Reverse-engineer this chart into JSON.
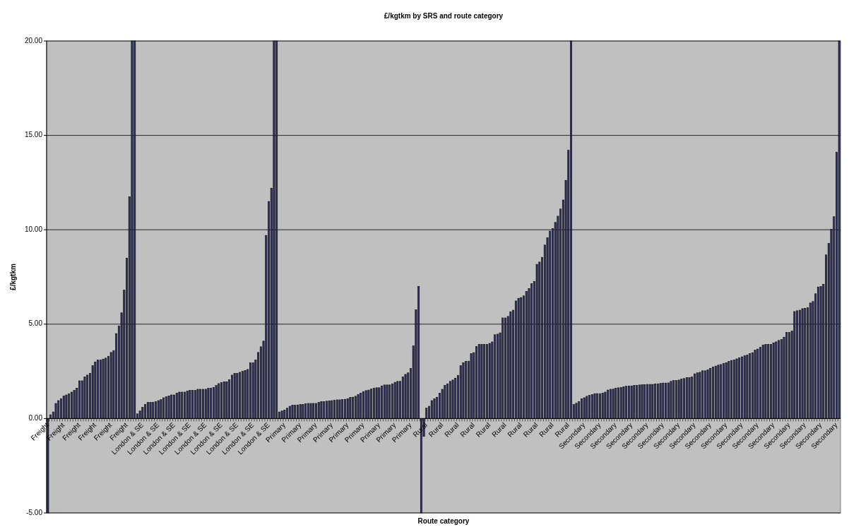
{
  "chart_data": {
    "type": "bar",
    "title": "£/kgtkm by SRS and route category",
    "xlabel": "Route category",
    "ylabel": "£/kgtkm",
    "categories": [
      "Freight",
      null,
      null,
      null,
      null,
      null,
      "Freight",
      null,
      null,
      null,
      null,
      null,
      "Freight",
      null,
      null,
      null,
      null,
      null,
      "Freight",
      null,
      null,
      null,
      null,
      null,
      "Freight",
      null,
      null,
      null,
      null,
      null,
      "Freight",
      null,
      null,
      null,
      null,
      null,
      "London & SE",
      null,
      null,
      null,
      null,
      null,
      "London & SE",
      null,
      null,
      null,
      null,
      null,
      "London & SE",
      null,
      null,
      null,
      null,
      null,
      "London & SE",
      null,
      null,
      null,
      null,
      null,
      "London & SE",
      null,
      null,
      null,
      null,
      null,
      "London & SE",
      null,
      null,
      null,
      null,
      null,
      "London & SE",
      null,
      null,
      null,
      null,
      null,
      "London & SE",
      null,
      null,
      null,
      null,
      null,
      "London & SE",
      null,
      null,
      null,
      null,
      null,
      "Primary",
      null,
      null,
      null,
      null,
      null,
      "Primary",
      null,
      null,
      null,
      null,
      null,
      "Primary",
      null,
      null,
      null,
      null,
      null,
      "Primary",
      null,
      null,
      null,
      null,
      null,
      "Primary",
      null,
      null,
      null,
      null,
      null,
      "Primary",
      null,
      null,
      null,
      null,
      null,
      "Primary",
      null,
      null,
      null,
      null,
      null,
      "Primary",
      null,
      null,
      null,
      null,
      null,
      "Primary",
      null,
      null,
      null,
      null,
      null,
      "Rural",
      null,
      null,
      null,
      null,
      null,
      "Rural",
      null,
      null,
      null,
      null,
      null,
      "Rural",
      null,
      null,
      null,
      null,
      null,
      "Rural",
      null,
      null,
      null,
      null,
      null,
      "Rural",
      null,
      null,
      null,
      null,
      null,
      "Rural",
      null,
      null,
      null,
      null,
      null,
      "Rural",
      null,
      null,
      null,
      null,
      null,
      "Rural",
      null,
      null,
      null,
      null,
      null,
      "Rural",
      null,
      null,
      null,
      null,
      null,
      "Rural",
      null,
      null,
      null,
      null,
      null,
      "Secondary",
      null,
      null,
      null,
      null,
      null,
      "Secondary",
      null,
      null,
      null,
      null,
      null,
      "Secondary",
      null,
      null,
      null,
      null,
      null,
      "Secondary",
      null,
      null,
      null,
      null,
      null,
      "Secondary",
      null,
      null,
      null,
      null,
      null,
      "Secondary",
      null,
      null,
      null,
      null,
      null,
      "Secondary",
      null,
      null,
      null,
      null,
      null,
      "Secondary",
      null,
      null,
      null,
      null,
      null,
      "Secondary",
      null,
      null,
      null,
      null,
      null,
      "Secondary",
      null,
      null,
      null,
      null,
      null,
      "Secondary",
      null,
      null,
      null,
      null,
      null,
      "Secondary",
      null,
      null,
      null,
      null,
      null,
      "Secondary",
      null,
      null,
      null,
      null,
      null,
      "Secondary",
      null,
      null,
      null,
      null,
      null,
      "Secondary",
      null,
      null,
      null,
      null,
      null,
      "Secondary",
      null,
      null,
      null,
      null,
      null,
      "Secondary",
      null
    ],
    "values": [
      -5,
      0.2,
      0.35,
      0.8,
      0.95,
      1.05,
      1.2,
      1.25,
      1.3,
      1.4,
      1.5,
      1.6,
      2.0,
      2.0,
      2.2,
      2.3,
      2.4,
      2.8,
      3.0,
      3.1,
      3.1,
      3.15,
      3.2,
      3.3,
      3.5,
      3.6,
      4.5,
      4.9,
      5.6,
      6.8,
      8.5,
      11.75,
      20,
      20,
      0.25,
      0.4,
      0.6,
      0.75,
      0.85,
      0.85,
      0.85,
      0.9,
      0.95,
      1.0,
      1.1,
      1.15,
      1.2,
      1.25,
      1.25,
      1.35,
      1.4,
      1.4,
      1.4,
      1.45,
      1.5,
      1.5,
      1.5,
      1.55,
      1.55,
      1.55,
      1.55,
      1.6,
      1.6,
      1.65,
      1.75,
      1.85,
      1.9,
      1.95,
      1.95,
      2.05,
      2.3,
      2.4,
      2.4,
      2.45,
      2.5,
      2.55,
      2.6,
      2.95,
      2.95,
      3.1,
      3.5,
      3.8,
      4.1,
      9.7,
      11.5,
      12.2,
      20,
      20,
      0.35,
      0.4,
      0.45,
      0.55,
      0.65,
      0.7,
      0.7,
      0.72,
      0.75,
      0.75,
      0.78,
      0.8,
      0.8,
      0.8,
      0.8,
      0.85,
      0.9,
      0.9,
      0.92,
      0.94,
      0.95,
      0.97,
      0.99,
      0.99,
      1.0,
      1.02,
      1.05,
      1.12,
      1.13,
      1.18,
      1.27,
      1.35,
      1.43,
      1.48,
      1.51,
      1.56,
      1.61,
      1.63,
      1.63,
      1.73,
      1.78,
      1.78,
      1.78,
      1.84,
      1.92,
      1.97,
      1.97,
      2.2,
      2.34,
      2.42,
      2.66,
      3.85,
      5.76,
      7.0,
      -5,
      -0.95,
      0.55,
      0.65,
      0.95,
      1.05,
      1.13,
      1.35,
      1.55,
      1.76,
      1.84,
      1.97,
      2.04,
      2.14,
      2.29,
      2.8,
      2.96,
      3.03,
      3.04,
      3.44,
      3.49,
      3.82,
      3.93,
      3.93,
      3.93,
      3.93,
      3.98,
      4.06,
      4.44,
      4.47,
      4.54,
      5.33,
      5.33,
      5.41,
      5.66,
      5.74,
      6.23,
      6.37,
      6.41,
      6.5,
      6.73,
      6.89,
      7.15,
      7.27,
      8.17,
      8.29,
      8.54,
      9.19,
      9.57,
      9.93,
      10.07,
      10.39,
      10.72,
      11.1,
      11.58,
      12.62,
      14.21,
      20,
      0.74,
      0.81,
      0.9,
      1.05,
      1.1,
      1.18,
      1.23,
      1.27,
      1.32,
      1.32,
      1.32,
      1.35,
      1.4,
      1.51,
      1.55,
      1.56,
      1.6,
      1.63,
      1.64,
      1.68,
      1.71,
      1.73,
      1.73,
      1.76,
      1.76,
      1.78,
      1.79,
      1.79,
      1.81,
      1.81,
      1.81,
      1.83,
      1.84,
      1.86,
      1.88,
      1.88,
      1.89,
      1.97,
      2.01,
      2.01,
      2.04,
      2.09,
      2.12,
      2.17,
      2.17,
      2.2,
      2.37,
      2.42,
      2.45,
      2.53,
      2.53,
      2.58,
      2.66,
      2.73,
      2.78,
      2.83,
      2.86,
      2.91,
      2.96,
      3.03,
      3.08,
      3.11,
      3.16,
      3.21,
      3.27,
      3.32,
      3.36,
      3.44,
      3.49,
      3.62,
      3.68,
      3.77,
      3.9,
      3.93,
      3.93,
      3.93,
      4.01,
      4.06,
      4.14,
      4.19,
      4.31,
      4.56,
      4.56,
      4.64,
      5.67,
      5.71,
      5.74,
      5.82,
      5.84,
      5.87,
      6.12,
      6.2,
      6.61,
      6.97,
      6.99,
      7.11,
      8.67,
      9.28,
      10.02,
      10.69,
      14.1,
      20
    ],
    "color": "#333366",
    "ylim": [
      -5,
      20
    ],
    "yticks": [
      {
        "value": -5,
        "label": "-5.00"
      },
      {
        "value": 0,
        "label": "0.00"
      },
      {
        "value": 5,
        "label": "5.00"
      },
      {
        "value": 10,
        "label": "10.00"
      },
      {
        "value": 15,
        "label": "15.00"
      },
      {
        "value": 20,
        "label": "20.00"
      }
    ],
    "grid": "y"
  }
}
